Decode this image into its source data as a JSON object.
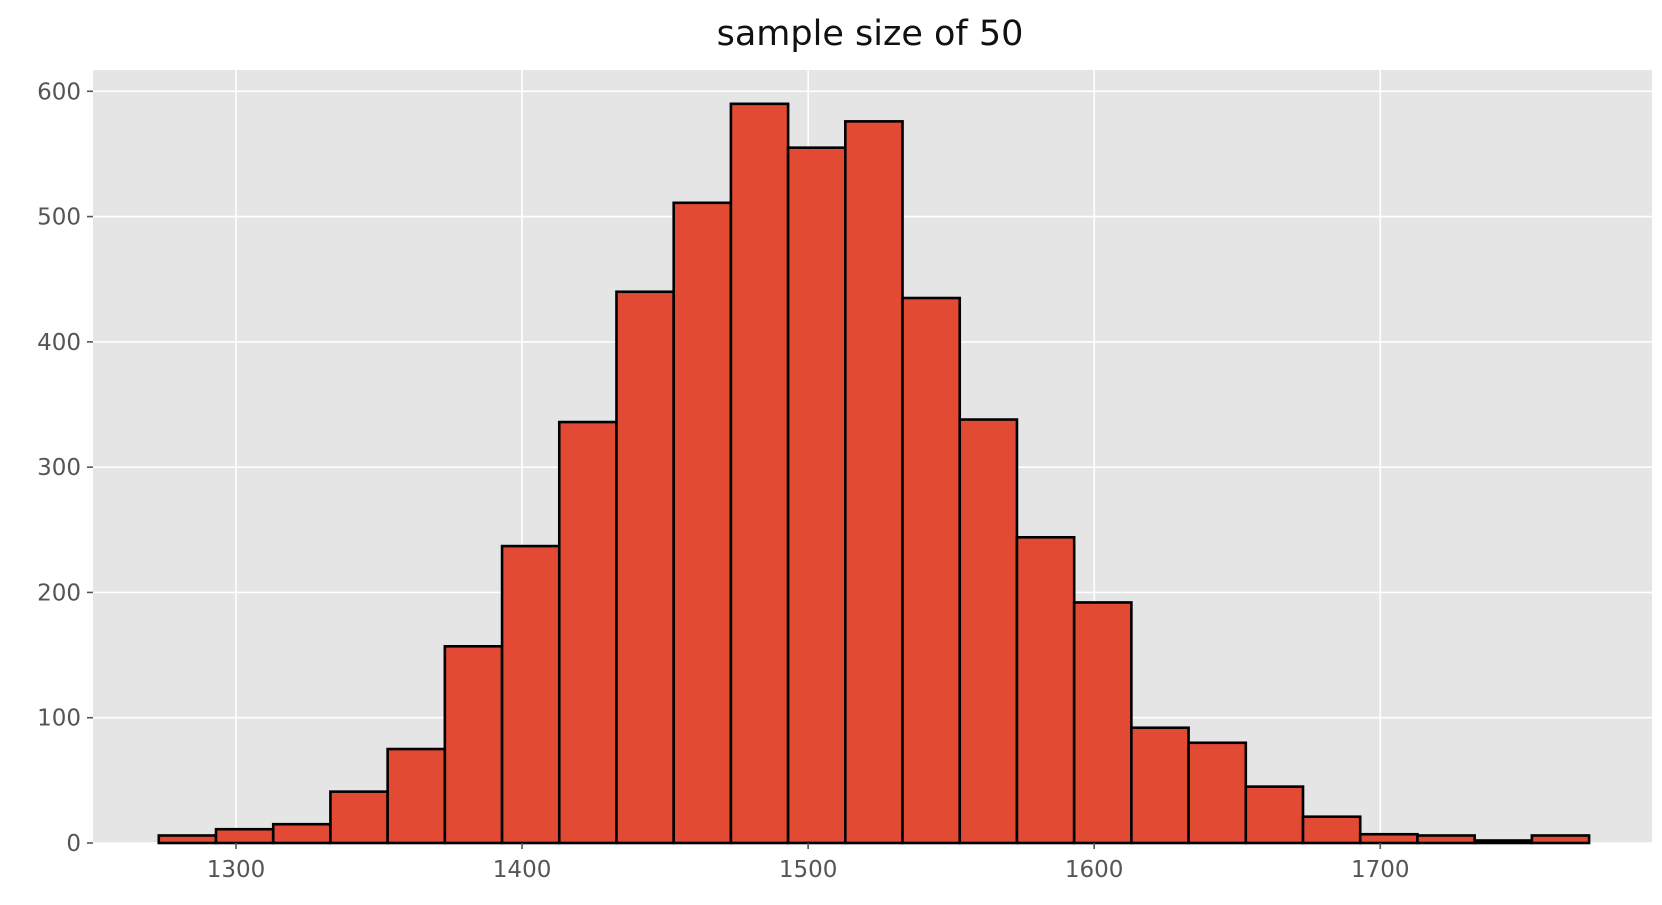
{
  "chart_data": {
    "type": "bar",
    "title": "sample size of 50",
    "xlabel": "",
    "ylabel": "",
    "xlim": [
      1250,
      1795
    ],
    "ylim": [
      0,
      617
    ],
    "x_ticks": [
      1300,
      1400,
      1500,
      1600,
      1700
    ],
    "y_ticks": [
      0,
      100,
      200,
      300,
      400,
      500,
      600
    ],
    "bin_edges": [
      1273,
      1293,
      1313,
      1333,
      1353,
      1373,
      1393,
      1413,
      1433,
      1453,
      1473,
      1493,
      1513,
      1533,
      1553,
      1573,
      1593,
      1613,
      1633,
      1653,
      1673,
      1693,
      1713,
      1733,
      1753,
      1773
    ],
    "values": [
      6,
      11,
      15,
      41,
      75,
      157,
      237,
      336,
      440,
      511,
      590,
      555,
      576,
      435,
      338,
      244,
      192,
      92,
      80,
      45,
      21,
      7,
      6,
      2,
      6
    ],
    "grid": true,
    "legend": "none",
    "colors": {
      "bar_fill": "#e24a33",
      "bar_edge": "#000000",
      "plot_background": "#e5e5e5",
      "grid": "#ffffff"
    }
  }
}
